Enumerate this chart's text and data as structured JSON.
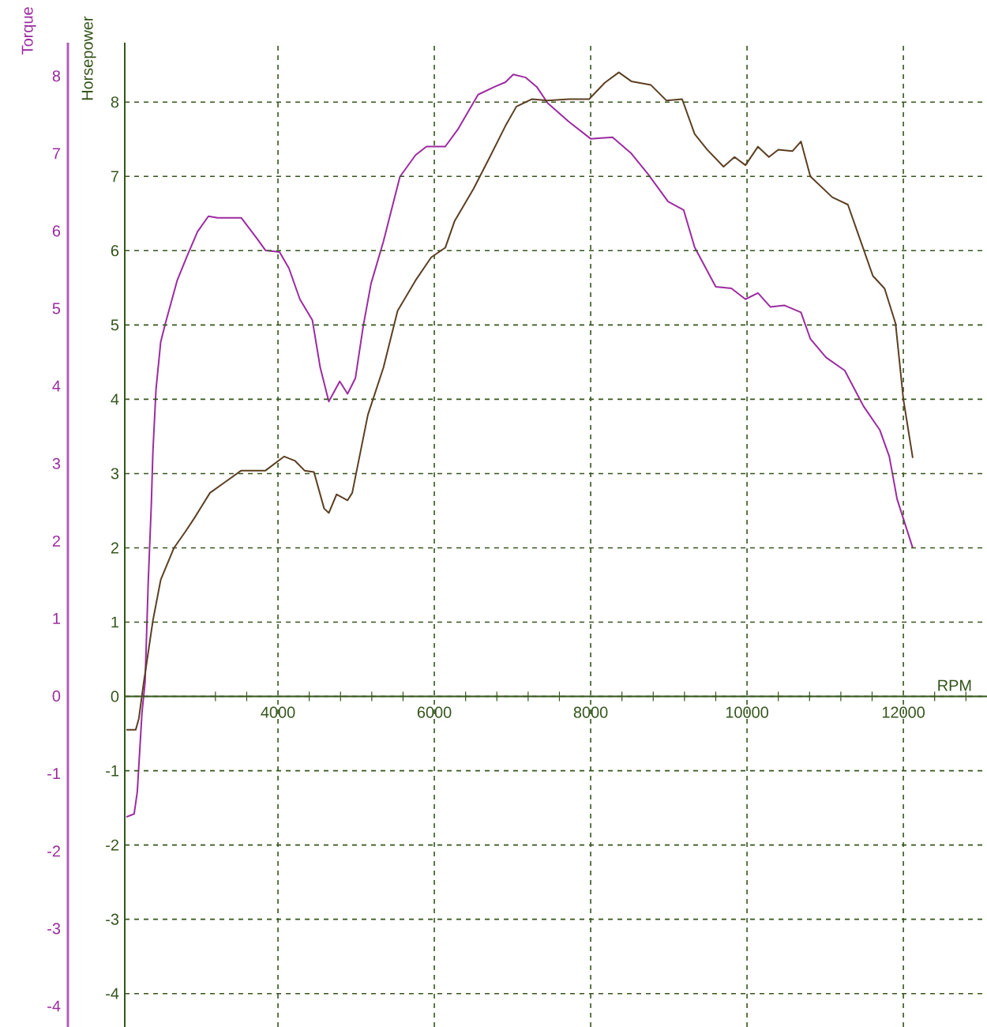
{
  "chart_data": {
    "type": "line",
    "xlabel": "RPM",
    "ylabel": "Horsepower",
    "y2label": "Torque",
    "grid": true,
    "xlim": [
      2040,
      13070
    ],
    "ylim": [
      -4.45,
      8.8
    ],
    "y2lim": [
      -4.27,
      8.43
    ],
    "xticks": [
      {
        "value": 3200,
        "label": null
      },
      {
        "value": 3600,
        "label": null
      },
      4000,
      {
        "value": 4400,
        "label": null
      },
      {
        "value": 4800,
        "label": null
      },
      {
        "value": 5200,
        "label": null
      },
      {
        "value": 5600,
        "label": null
      },
      6000,
      {
        "value": 6400,
        "label": null
      },
      {
        "value": 6800,
        "label": null
      },
      {
        "value": 7200,
        "label": null
      },
      {
        "value": 7600,
        "label": null
      },
      8000,
      {
        "value": 8400,
        "label": null
      },
      {
        "value": 8800,
        "label": null
      },
      {
        "value": 9200,
        "label": null
      },
      {
        "value": 9600,
        "label": null
      },
      10000,
      {
        "value": 10400,
        "label": null
      },
      {
        "value": 10800,
        "label": null
      },
      {
        "value": 11200,
        "label": null
      },
      {
        "value": 11600,
        "label": null
      },
      12000,
      {
        "value": 12400,
        "label": null
      },
      {
        "value": 12800,
        "label": null
      }
    ],
    "yticks": [
      -4,
      -3,
      -2,
      -1,
      0,
      1,
      2,
      3,
      4,
      5,
      6,
      7,
      8
    ],
    "y2ticks": [
      -4,
      -3,
      -2,
      -1,
      0,
      1,
      2,
      3,
      4,
      5,
      6,
      7,
      8
    ],
    "series": [
      {
        "color": "#5c3f22",
        "x": [
          2060,
          2180,
          2220,
          2280,
          2320,
          2400,
          2500,
          2670,
          2810,
          2930,
          3130,
          3330,
          3530,
          3840,
          4080,
          4220,
          4340,
          4460,
          4590,
          4650,
          4750,
          4890,
          4950,
          5150,
          5350,
          5530,
          5760,
          5960,
          6140,
          6260,
          6500,
          6710,
          6910,
          7050,
          7250,
          7450,
          7720,
          7980,
          8180,
          8360,
          8520,
          8770,
          8970,
          9170,
          9330,
          9490,
          9700,
          9840,
          9980,
          10140,
          10280,
          10400,
          10580,
          10690,
          10810,
          11090,
          11290,
          11410,
          11610,
          11760,
          11900,
          12000,
          12120
        ],
        "values": [
          -0.45,
          -0.45,
          -0.3,
          0.17,
          0.45,
          1.02,
          1.57,
          2.0,
          2.21,
          2.4,
          2.74,
          2.89,
          3.04,
          3.04,
          3.23,
          3.17,
          3.04,
          3.02,
          2.53,
          2.47,
          2.72,
          2.64,
          2.74,
          3.79,
          4.43,
          5.19,
          5.6,
          5.91,
          6.04,
          6.4,
          6.83,
          7.26,
          7.68,
          7.94,
          8.04,
          8.02,
          8.04,
          8.04,
          8.26,
          8.4,
          8.28,
          8.23,
          8.02,
          8.04,
          7.57,
          7.36,
          7.13,
          7.26,
          7.15,
          7.4,
          7.26,
          7.36,
          7.34,
          7.47,
          7.0,
          6.72,
          6.62,
          6.26,
          5.66,
          5.49,
          5.02,
          4.0,
          3.21
        ]
      },
      {
        "color": "#9c2ba0",
        "axis": "y2",
        "x": [
          2060,
          2160,
          2200,
          2260,
          2300,
          2340,
          2380,
          2400,
          2440,
          2500,
          2560,
          2710,
          2830,
          2970,
          3110,
          3230,
          3530,
          3740,
          3840,
          4020,
          4140,
          4280,
          4440,
          4540,
          4650,
          4790,
          4890,
          4990,
          5090,
          5190,
          5350,
          5560,
          5760,
          5900,
          6140,
          6300,
          6560,
          6770,
          6910,
          7010,
          7170,
          7310,
          7450,
          7720,
          8000,
          8280,
          8520,
          8730,
          8990,
          9190,
          9330,
          9600,
          9800,
          9980,
          10140,
          10300,
          10480,
          10690,
          10810,
          11010,
          11250,
          11490,
          11700,
          11820,
          11920,
          12120
        ],
        "values": [
          -1.56,
          -1.52,
          -1.24,
          -0.22,
          0.18,
          1.46,
          2.48,
          3.15,
          3.96,
          4.57,
          4.81,
          5.36,
          5.66,
          5.99,
          6.19,
          6.17,
          6.17,
          5.89,
          5.75,
          5.73,
          5.52,
          5.12,
          4.85,
          4.24,
          3.8,
          4.06,
          3.9,
          4.1,
          4.77,
          5.32,
          5.87,
          6.7,
          6.98,
          7.09,
          7.09,
          7.31,
          7.76,
          7.86,
          7.92,
          8.02,
          7.98,
          7.86,
          7.65,
          7.41,
          7.19,
          7.21,
          7.0,
          6.74,
          6.38,
          6.27,
          5.79,
          5.28,
          5.26,
          5.12,
          5.2,
          5.02,
          5.04,
          4.95,
          4.61,
          4.37,
          4.2,
          3.74,
          3.43,
          3.09,
          2.54,
          1.91
        ]
      }
    ]
  }
}
